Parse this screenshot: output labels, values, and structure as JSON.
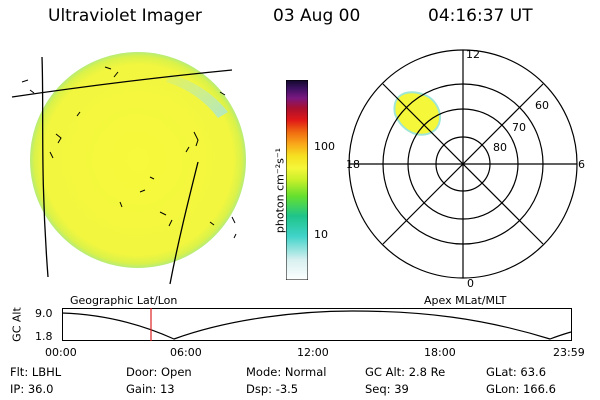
{
  "header": {
    "instrument": "Ultraviolet Imager",
    "date": "03 Aug 00",
    "time": "04:16:37 UT"
  },
  "colorbar": {
    "unit_label": "photon cm⁻²s⁻¹",
    "ticks": [
      {
        "value": 100,
        "label": "100"
      },
      {
        "value": 10,
        "label": "10"
      }
    ],
    "scale": "log"
  },
  "polar_plot": {
    "mlt_labels": {
      "top": "12",
      "bottom": "0",
      "left": "18",
      "right": "6"
    },
    "lat_labels": [
      "60",
      "70",
      "80"
    ]
  },
  "timeline": {
    "geo_label": "Geographic Lat/Lon",
    "apex_label": "Apex MLat/MLT",
    "axis_label": "GC Alt",
    "y_top": "9.0",
    "y_bottom": "1.8",
    "x_ticks": [
      "00:00",
      "06:00",
      "12:00",
      "18:00",
      "23:59"
    ]
  },
  "info": {
    "rows": [
      [
        {
          "key": "Flt:",
          "val": "LBHL"
        },
        {
          "key": "Door:",
          "val": "Open"
        },
        {
          "key": "Mode:",
          "val": "Normal"
        },
        {
          "key": "GC Alt:",
          "val": "2.8 Re"
        },
        {
          "key": "GLat:",
          "val": "63.6"
        }
      ],
      [
        {
          "key": "IP:",
          "val": "36.0"
        },
        {
          "key": "Gain:",
          "val": "13"
        },
        {
          "key": "Dsp:",
          "val": "-3.5"
        },
        {
          "key": "Seq:",
          "val": "39"
        },
        {
          "key": "GLon:",
          "val": "166.6"
        }
      ]
    ]
  },
  "colors": {
    "image_fill": "#f6f83a",
    "image_edge": "#9fe6d6",
    "marker": "#dd2222"
  }
}
